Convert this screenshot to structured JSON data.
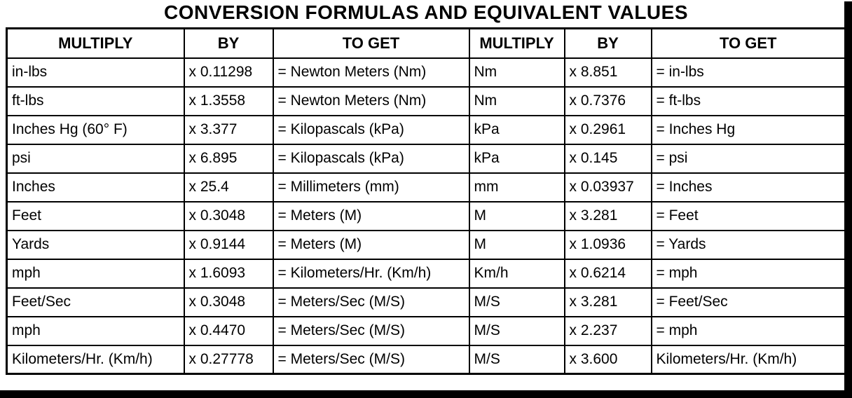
{
  "title": "CONVERSION FORMULAS AND EQUIVALENT VALUES",
  "table": {
    "headers": [
      "MULTIPLY",
      "BY",
      "TO GET",
      "MULTIPLY",
      "BY",
      "TO GET"
    ],
    "rows": [
      [
        "in-lbs",
        "x 0.11298",
        "= Newton Meters (Nm)",
        "Nm",
        "x 8.851",
        "= in-lbs"
      ],
      [
        "ft-lbs",
        "x 1.3558",
        "= Newton Meters (Nm)",
        "Nm",
        "x 0.7376",
        "= ft-lbs"
      ],
      [
        "Inches Hg (60° F)",
        "x 3.377",
        "= Kilopascals (kPa)",
        "kPa",
        "x 0.2961",
        "= Inches Hg"
      ],
      [
        "psi",
        "x 6.895",
        "= Kilopascals (kPa)",
        "kPa",
        "x 0.145",
        "= psi"
      ],
      [
        "Inches",
        "x 25.4",
        "= Millimeters (mm)",
        "mm",
        "x 0.03937",
        "= Inches"
      ],
      [
        "Feet",
        "x 0.3048",
        "= Meters (M)",
        "M",
        "x 3.281",
        "= Feet"
      ],
      [
        "Yards",
        "x 0.9144",
        "= Meters (M)",
        "M",
        "x 1.0936",
        "= Yards"
      ],
      [
        "mph",
        "x 1.6093",
        "= Kilometers/Hr. (Km/h)",
        "Km/h",
        "x 0.6214",
        "= mph"
      ],
      [
        "Feet/Sec",
        "x 0.3048",
        "= Meters/Sec (M/S)",
        "M/S",
        "x 3.281",
        "= Feet/Sec"
      ],
      [
        "mph",
        "x 0.4470",
        "= Meters/Sec (M/S)",
        "M/S",
        "x 2.237",
        "= mph"
      ],
      [
        "Kilometers/Hr. (Km/h)",
        "x 0.27778",
        "= Meters/Sec (M/S)",
        "M/S",
        "x 3.600",
        "Kilometers/Hr. (Km/h)"
      ]
    ]
  }
}
